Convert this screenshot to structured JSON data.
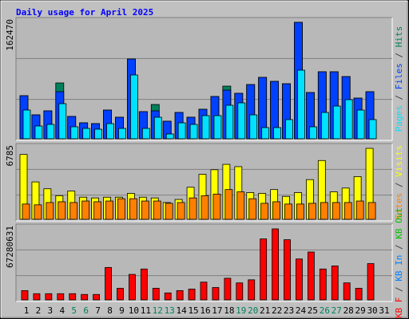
{
  "chart_data": [
    {
      "type": "bar",
      "title": "Daily usage for April 2025",
      "legend_separator": " / ",
      "ylim": [
        0,
        162470
      ],
      "yticks": [
        162470
      ],
      "series": [
        {
          "name": "Hits",
          "color": "#00805c",
          "values": [
            60090,
            33380,
            38950,
            77900,
            31160,
            22260,
            21140,
            40060,
            30050,
            111280,
            37840,
            47850,
            24480,
            36720,
            30050,
            41170,
            58980,
            73440,
            63430,
            75670,
            85690,
            80120,
            76780,
            162470,
            64540,
            93480,
            93480,
            86800,
            56750,
            65660,
            null
          ]
        },
        {
          "name": "Files",
          "color": "#0040ff",
          "values": [
            60090,
            33380,
            38950,
            65660,
            31160,
            22260,
            21140,
            40060,
            30050,
            111280,
            37840,
            38950,
            24480,
            36720,
            30050,
            41170,
            58980,
            67880,
            63430,
            75670,
            85690,
            80120,
            76780,
            162470,
            64540,
            93480,
            93480,
            86800,
            56750,
            65660,
            null
          ]
        },
        {
          "name": "Pages",
          "color": "#00e0ff",
          "values": [
            40060,
            17800,
            20030,
            48960,
            16690,
            14470,
            13350,
            21140,
            14470,
            89020,
            14470,
            30050,
            6680,
            22260,
            20030,
            32270,
            32270,
            46740,
            50080,
            33380,
            15580,
            15580,
            26710,
            95700,
            16690,
            36720,
            45620,
            54530,
            40060,
            26710,
            null
          ]
        }
      ]
    },
    {
      "type": "bar",
      "legend_separator": " / ",
      "ylim": [
        0,
        6785
      ],
      "yticks": [
        6785
      ],
      "series": [
        {
          "name": "Visits",
          "color": "#ffff00",
          "values": [
            6200,
            3575,
            2920,
            2260,
            2700,
            2115,
            2045,
            2115,
            2115,
            2480,
            2115,
            2045,
            1605,
            1900,
            3065,
            4305,
            4740,
            5255,
            5035,
            2555,
            2480,
            2845,
            2190,
            2555,
            3795,
            5620,
            2625,
            2990,
            4085,
            6785,
            null
          ]
        },
        {
          "name": "Sites",
          "color": "#ff8000",
          "values": [
            1460,
            1385,
            1605,
            1680,
            1605,
            1750,
            1680,
            1750,
            1970,
            1970,
            1750,
            1750,
            1530,
            1605,
            2045,
            2260,
            2410,
            2845,
            2625,
            1970,
            1530,
            1680,
            1460,
            1460,
            1530,
            1605,
            1605,
            1605,
            1750,
            1605,
            null
          ]
        }
      ]
    },
    {
      "type": "bar",
      "legend_separator": " / ",
      "ylim": [
        0,
        67280631
      ],
      "yticks": [
        67280631
      ],
      "categories": [
        "1",
        "2",
        "3",
        "4",
        "5",
        "6",
        "7",
        "8",
        "9",
        "10",
        "11",
        "12",
        "13",
        "14",
        "15",
        "16",
        "17",
        "18",
        "19",
        "20",
        "21",
        "22",
        "23",
        "24",
        "25",
        "26",
        "27",
        "28",
        "29",
        "30",
        "31"
      ],
      "category_colors": [
        "#000000",
        "#000000",
        "#000000",
        "#000000",
        "#00805c",
        "#00805c",
        "#000000",
        "#000000",
        "#000000",
        "#000000",
        "#000000",
        "#00805c",
        "#00805c",
        "#000000",
        "#000000",
        "#000000",
        "#000000",
        "#000000",
        "#00805c",
        "#00805c",
        "#000000",
        "#000000",
        "#000000",
        "#000000",
        "#000000",
        "#00805c",
        "#00805c",
        "#000000",
        "#000000",
        "#000000",
        "#000000"
      ],
      "series": [
        {
          "name": "KB Out",
          "color": "#00c000",
          "values": [
            0,
            0,
            0,
            0,
            0,
            0,
            0,
            0,
            0,
            0,
            0,
            0,
            0,
            0,
            0,
            0,
            0,
            0,
            0,
            0,
            0,
            0,
            0,
            0,
            0,
            0,
            0,
            0,
            0,
            0,
            null
          ]
        },
        {
          "name": "KB In",
          "color": "#0080ff",
          "values": [
            0,
            0,
            0,
            0,
            0,
            0,
            0,
            0,
            0,
            0,
            0,
            0,
            0,
            0,
            0,
            0,
            0,
            0,
            0,
            0,
            0,
            0,
            0,
            0,
            0,
            0,
            0,
            0,
            0,
            0,
            null
          ]
        },
        {
          "name": "KB F",
          "color": "#ff0000",
          "values": [
            8776000,
            5850000,
            5850000,
            5850000,
            5850000,
            5119000,
            5119000,
            30715000,
            10970000,
            24133000,
            29252000,
            10970000,
            6582000,
            8776000,
            10238000,
            16820000,
            11701000,
            20477000,
            16089000,
            19014000,
            57773000,
            67280631,
            57042000,
            38760000,
            45341000,
            29252000,
            32178000,
            16089000,
            10970000,
            34372000,
            null
          ]
        }
      ]
    }
  ]
}
